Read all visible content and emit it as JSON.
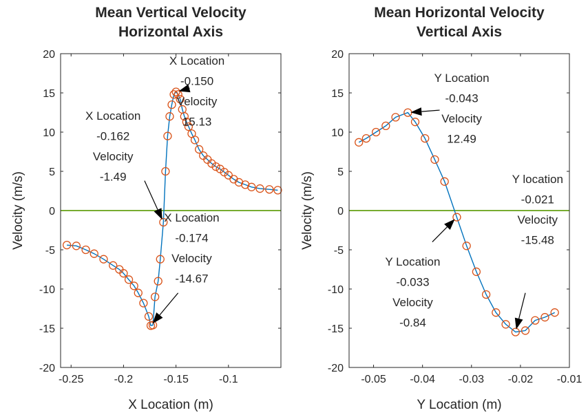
{
  "chart_data": [
    {
      "type": "line",
      "title": [
        "Mean Vertical Velocity",
        "Horizontal Axis"
      ],
      "xlabel": "X Location (m)",
      "ylabel": "Velocity (m/s)",
      "xlim": [
        -0.26,
        -0.05
      ],
      "ylim": [
        -20,
        20
      ],
      "xticks": [
        -0.25,
        -0.2,
        -0.15,
        -0.1
      ],
      "xtick_labels": [
        "-0.25",
        "-0.2",
        "-0.15",
        "-0.1"
      ],
      "yticks": [
        -20,
        -15,
        -10,
        -5,
        0,
        5,
        10,
        15,
        20
      ],
      "ytick_labels": [
        "-20",
        "-15",
        "-10",
        "-5",
        "0",
        "5",
        "10",
        "15",
        "20"
      ],
      "grid": false,
      "series": [
        {
          "marker": "circle",
          "color": "#D95319",
          "line_color": "#0072BD",
          "x": [
            -0.254,
            -0.245,
            -0.236,
            -0.228,
            -0.219,
            -0.21,
            -0.204,
            -0.2,
            -0.195,
            -0.19,
            -0.186,
            -0.181,
            -0.176,
            -0.174,
            -0.172,
            -0.17,
            -0.167,
            -0.165,
            -0.162,
            -0.16,
            -0.158,
            -0.156,
            -0.154,
            -0.152,
            -0.15,
            -0.148,
            -0.146,
            -0.144,
            -0.142,
            -0.14,
            -0.138,
            -0.135,
            -0.132,
            -0.128,
            -0.124,
            -0.12,
            -0.116,
            -0.112,
            -0.108,
            -0.104,
            -0.1,
            -0.095,
            -0.09,
            -0.084,
            -0.078,
            -0.07,
            -0.061,
            -0.053
          ],
          "y": [
            -4.4,
            -4.5,
            -5.0,
            -5.5,
            -6.2,
            -7.0,
            -7.5,
            -8.0,
            -8.8,
            -9.6,
            -10.5,
            -11.8,
            -13.5,
            -14.67,
            -14.6,
            -11.0,
            -9.0,
            -6.2,
            -1.49,
            5.0,
            9.5,
            12.0,
            13.5,
            14.8,
            15.13,
            14.8,
            14.2,
            12.9,
            12.0,
            11.3,
            10.7,
            9.8,
            9.0,
            7.8,
            7.0,
            6.5,
            6.0,
            5.6,
            5.3,
            4.9,
            4.5,
            4.0,
            3.6,
            3.3,
            3.0,
            2.8,
            2.7,
            2.6
          ]
        },
        {
          "color": "#77AC30",
          "x": [
            -0.26,
            -0.05
          ],
          "y": [
            0,
            0
          ]
        }
      ],
      "annotations": [
        {
          "lines": [
            "X Location",
            "-0.150",
            "Velocity",
            "15.13"
          ],
          "point": [
            -0.15,
            15.13
          ],
          "label_at": [
            -0.13,
            18.6
          ],
          "arrow_from": [
            -0.137,
            15.6
          ]
        },
        {
          "lines": [
            "X Location",
            "-0.162",
            "Velocity",
            "-1.49"
          ],
          "point": [
            -0.162,
            -1.49
          ],
          "label_at": [
            -0.21,
            11.6
          ],
          "arrow_from": [
            -0.18,
            3.8
          ]
        },
        {
          "lines": [
            "X Location",
            "-0.174",
            "Velocity",
            "-14.67"
          ],
          "point": [
            -0.174,
            -14.67
          ],
          "label_at": [
            -0.135,
            -1.4
          ],
          "arrow_from": [
            -0.148,
            -10.5
          ]
        }
      ]
    },
    {
      "type": "line",
      "title": [
        "Mean Horizontal Velocity",
        "Vertical Axis"
      ],
      "xlabel": "Y Location (m)",
      "ylabel": "Velocity (m/s)",
      "xlim": [
        -0.055,
        -0.01
      ],
      "ylim": [
        -20,
        20
      ],
      "xticks": [
        -0.05,
        -0.04,
        -0.03,
        -0.02,
        -0.01
      ],
      "xtick_labels": [
        "-0.05",
        "-0.04",
        "-0.03",
        "-0.02",
        "-0.01"
      ],
      "yticks": [
        -20,
        -15,
        -10,
        -5,
        0,
        5,
        10,
        15,
        20
      ],
      "ytick_labels": [
        "-20",
        "-15",
        "-10",
        "-5",
        "0",
        "5",
        "10",
        "15",
        "20"
      ],
      "grid": false,
      "series": [
        {
          "marker": "circle",
          "color": "#D95319",
          "line_color": "#0072BD",
          "x": [
            -0.053,
            -0.0515,
            -0.0495,
            -0.0475,
            -0.0455,
            -0.043,
            -0.0415,
            -0.0395,
            -0.0375,
            -0.0355,
            -0.033,
            -0.031,
            -0.029,
            -0.027,
            -0.025,
            -0.023,
            -0.021,
            -0.019,
            -0.017,
            -0.015,
            -0.013
          ],
          "y": [
            8.7,
            9.2,
            10.0,
            10.8,
            11.9,
            12.49,
            11.3,
            9.2,
            6.5,
            3.7,
            -0.84,
            -4.5,
            -7.8,
            -10.7,
            -13.0,
            -14.5,
            -15.48,
            -15.3,
            -14.0,
            -13.6,
            -13.0
          ]
        },
        {
          "color": "#77AC30",
          "x": [
            -0.055,
            -0.01
          ],
          "y": [
            0,
            0
          ]
        }
      ],
      "annotations": [
        {
          "lines": [
            "Y Location",
            "-0.043",
            "Velocity",
            "12.49"
          ],
          "point": [
            -0.043,
            12.49
          ],
          "label_at": [
            -0.032,
            16.4
          ],
          "arrow_from": [
            -0.0365,
            12.8
          ]
        },
        {
          "lines": [
            "Y Location",
            "-0.033",
            "Velocity",
            "-0.84"
          ],
          "point": [
            -0.033,
            -0.84
          ],
          "label_at": [
            -0.042,
            -7.0
          ],
          "arrow_from": [
            -0.038,
            -4.0
          ]
        },
        {
          "lines": [
            "Y location",
            "-0.021",
            "Velocity",
            "-15.48"
          ],
          "point": [
            -0.021,
            -15.48
          ],
          "label_at": [
            -0.0165,
            3.5
          ],
          "arrow_from": [
            -0.019,
            -10.5
          ]
        }
      ]
    }
  ]
}
